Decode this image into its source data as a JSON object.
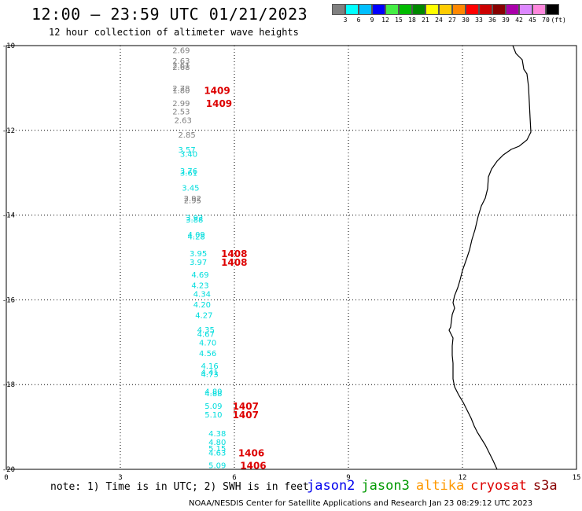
{
  "header": {
    "title": "12:00 — 23:59 UTC 01/21/2023",
    "subtitle": "12 hour collection of altimeter wave heights"
  },
  "color_scale": {
    "labels": [
      "3",
      "6",
      "9",
      "12",
      "15",
      "18",
      "21",
      "24",
      "27",
      "30",
      "33",
      "36",
      "39",
      "42",
      "45",
      "70"
    ],
    "unit": "(ft)",
    "colors": [
      "#808080",
      "#00ffff",
      "#00bfff",
      "#0000ff",
      "#44ee44",
      "#00bb00",
      "#008800",
      "#ffff00",
      "#ffcc00",
      "#ff8800",
      "#ff0000",
      "#cc0000",
      "#880000",
      "#aa00aa",
      "#dd88ff",
      "#ff88dd",
      "#000000"
    ]
  },
  "axes": {
    "x_ticks": [
      "0",
      "3",
      "6",
      "9",
      "12",
      "15"
    ],
    "y_ticks": [
      "-10",
      "-12",
      "-14",
      "-16",
      "-18",
      "-20"
    ]
  },
  "map_data": {
    "extent": {
      "lon": [
        0,
        15
      ],
      "lat": [
        -20,
        -10
      ]
    },
    "coast_color": "#000000",
    "wave_heights": [
      {
        "lon": 4.6,
        "lat": -10.1,
        "v": "2.69",
        "c": "#808080"
      },
      {
        "lon": 4.6,
        "lat": -10.35,
        "v": "2.63",
        "c": "#808080"
      },
      {
        "lon": 4.6,
        "lat": -10.45,
        "v": "2.61",
        "c": "#808080"
      },
      {
        "lon": 4.6,
        "lat": -10.5,
        "v": "2.68",
        "c": "#808080"
      },
      {
        "lon": 4.6,
        "lat": -11.0,
        "v": "2.78",
        "c": "#808080"
      },
      {
        "lon": 4.6,
        "lat": -11.05,
        "v": "1.80",
        "c": "#808080"
      },
      {
        "lon": 4.6,
        "lat": -11.35,
        "v": "2.99",
        "c": "#808080"
      },
      {
        "lon": 4.6,
        "lat": -11.55,
        "v": "2.53",
        "c": "#808080"
      },
      {
        "lon": 4.65,
        "lat": -11.75,
        "v": "2.63",
        "c": "#808080"
      },
      {
        "lon": 4.75,
        "lat": -12.1,
        "v": "2.85",
        "c": "#808080"
      },
      {
        "lon": 4.75,
        "lat": -12.45,
        "v": "3.57",
        "c": "#00dddd"
      },
      {
        "lon": 4.8,
        "lat": -12.55,
        "v": "3.40",
        "c": "#00dddd"
      },
      {
        "lon": 4.8,
        "lat": -12.95,
        "v": "3.76",
        "c": "#00dddd"
      },
      {
        "lon": 4.8,
        "lat": -13.0,
        "v": "3.61",
        "c": "#00dddd"
      },
      {
        "lon": 4.85,
        "lat": -13.35,
        "v": "3.45",
        "c": "#00dddd"
      },
      {
        "lon": 4.9,
        "lat": -13.6,
        "v": "2.92",
        "c": "#808080"
      },
      {
        "lon": 4.9,
        "lat": -13.65,
        "v": "2.95",
        "c": "#808080"
      },
      {
        "lon": 4.95,
        "lat": -14.05,
        "v": "3.92",
        "c": "#00dddd"
      },
      {
        "lon": 4.95,
        "lat": -14.1,
        "v": "3.88",
        "c": "#00dddd"
      },
      {
        "lon": 5.0,
        "lat": -14.45,
        "v": "4.09",
        "c": "#00dddd"
      },
      {
        "lon": 5.0,
        "lat": -14.5,
        "v": "4.28",
        "c": "#00dddd"
      },
      {
        "lon": 5.05,
        "lat": -14.9,
        "v": "3.95",
        "c": "#00dddd"
      },
      {
        "lon": 5.05,
        "lat": -15.1,
        "v": "3.97",
        "c": "#00dddd"
      },
      {
        "lon": 5.1,
        "lat": -15.4,
        "v": "4.69",
        "c": "#00dddd"
      },
      {
        "lon": 5.1,
        "lat": -15.65,
        "v": "4.23",
        "c": "#00dddd"
      },
      {
        "lon": 5.15,
        "lat": -15.85,
        "v": "4.34",
        "c": "#00dddd"
      },
      {
        "lon": 5.15,
        "lat": -16.1,
        "v": "4.20",
        "c": "#00dddd"
      },
      {
        "lon": 5.2,
        "lat": -16.35,
        "v": "4.27",
        "c": "#00dddd"
      },
      {
        "lon": 5.25,
        "lat": -16.7,
        "v": "4.35",
        "c": "#00dddd"
      },
      {
        "lon": 5.25,
        "lat": -16.8,
        "v": "4.67",
        "c": "#00dddd"
      },
      {
        "lon": 5.3,
        "lat": -17.0,
        "v": "4.70",
        "c": "#00dddd"
      },
      {
        "lon": 5.3,
        "lat": -17.25,
        "v": "4.56",
        "c": "#00dddd"
      },
      {
        "lon": 5.35,
        "lat": -17.55,
        "v": "4.16",
        "c": "#00dddd"
      },
      {
        "lon": 5.35,
        "lat": -17.7,
        "v": "4.41",
        "c": "#00dddd"
      },
      {
        "lon": 5.35,
        "lat": -17.75,
        "v": "4.73",
        "c": "#00dddd"
      },
      {
        "lon": 5.45,
        "lat": -18.15,
        "v": "4.80",
        "c": "#00dddd"
      },
      {
        "lon": 5.45,
        "lat": -18.2,
        "v": "4.88",
        "c": "#00dddd"
      },
      {
        "lon": 5.45,
        "lat": -18.5,
        "v": "5.09",
        "c": "#00dddd"
      },
      {
        "lon": 5.45,
        "lat": -18.7,
        "v": "5.10",
        "c": "#00dddd"
      },
      {
        "lon": 5.55,
        "lat": -19.15,
        "v": "4.38",
        "c": "#00dddd"
      },
      {
        "lon": 5.55,
        "lat": -19.35,
        "v": "4.80",
        "c": "#00dddd"
      },
      {
        "lon": 5.55,
        "lat": -19.5,
        "v": "5.15",
        "c": "#00dddd"
      },
      {
        "lon": 5.55,
        "lat": -19.6,
        "v": "4.63",
        "c": "#00dddd"
      },
      {
        "lon": 5.55,
        "lat": -19.9,
        "v": "5.09",
        "c": "#00dddd"
      }
    ],
    "pass_labels": [
      {
        "lon": 5.2,
        "lat": -11.05,
        "t": "1409"
      },
      {
        "lon": 5.25,
        "lat": -11.35,
        "t": "1409"
      },
      {
        "lon": 5.65,
        "lat": -14.9,
        "t": "1408"
      },
      {
        "lon": 5.65,
        "lat": -15.1,
        "t": "1408"
      },
      {
        "lon": 5.95,
        "lat": -18.5,
        "t": "1407"
      },
      {
        "lon": 5.95,
        "lat": -18.7,
        "t": "1407"
      },
      {
        "lon": 6.1,
        "lat": -19.6,
        "t": "1406"
      },
      {
        "lon": 6.15,
        "lat": -19.9,
        "t": "1406"
      }
    ],
    "pass_label_color": "#dd0000"
  },
  "footer": {
    "note": "note: 1) Time is in UTC; 2) SWH is in feet",
    "credit": "NOAA/NESDIS Center for Satellite Applications and Research   Jan 23 08:29:12 UTC 2023"
  },
  "satellites": [
    {
      "name": "jason2",
      "color": "#0000ee"
    },
    {
      "name": "jason3",
      "color": "#009900"
    },
    {
      "name": "altika",
      "color": "#ff9900"
    },
    {
      "name": "cryosat",
      "color": "#dd0000"
    },
    {
      "name": "s3a",
      "color": "#880000"
    }
  ]
}
